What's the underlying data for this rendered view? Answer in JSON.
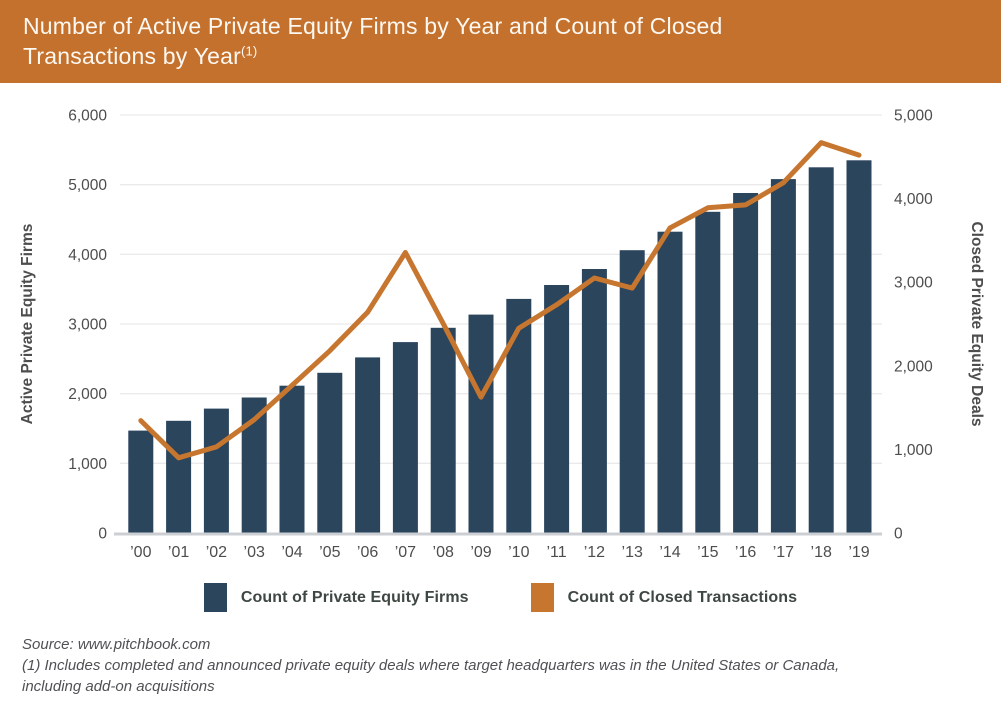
{
  "header": {
    "title_line1": "Number of Active Private Equity Firms by Year and Count of Closed",
    "title_line2": "Transactions by Year",
    "title_superscript": "(1)",
    "background_color": "#C5712E",
    "text_color": "#FDF8F1"
  },
  "chart_data": {
    "type": "combo",
    "categories": [
      "’00",
      "’01",
      "’02",
      "’03",
      "’04",
      "’05",
      "’06",
      "’07",
      "’08",
      "’09",
      "’10",
      "’11",
      "’12",
      "’13",
      "’14",
      "’15",
      "’16",
      "’17",
      "’18",
      "’19"
    ],
    "series": [
      {
        "name": "Count of Private Equity Firms",
        "type": "bar",
        "axis": "left",
        "color": "#2A455C",
        "values": [
          1470,
          1610,
          1785,
          1945,
          2115,
          2300,
          2520,
          2740,
          2945,
          3135,
          3360,
          3560,
          3790,
          4060,
          4325,
          4610,
          4880,
          5080,
          5250,
          5350
        ]
      },
      {
        "name": "Count of Closed Transactions",
        "type": "line",
        "axis": "right",
        "color": "#C7762F",
        "values": [
          1345,
          900,
          1030,
          1355,
          1765,
          2180,
          2640,
          3355,
          2505,
          1625,
          2450,
          2730,
          3050,
          2930,
          3650,
          3890,
          3925,
          4190,
          4670,
          4520
        ]
      }
    ],
    "left_axis": {
      "label": "Active Private Equity Firms",
      "min": 0,
      "max": 6000,
      "tick_step": 1000,
      "ticks": [
        "0",
        "1,000",
        "2,000",
        "3,000",
        "4,000",
        "5,000",
        "6,000"
      ]
    },
    "right_axis": {
      "label": "Closed Private Equity Deals",
      "min": 0,
      "max": 5000,
      "tick_step": 1000,
      "ticks": [
        "0",
        "1,000",
        "2,000",
        "3,000",
        "4,000",
        "5,000"
      ]
    },
    "grid": true,
    "legend_position": "bottom",
    "gridline_color": "#EAEAEC",
    "baseline_color": "#CBCFD3",
    "tick_label_color": "#4D4D4D"
  },
  "footer": {
    "source_line": "Source: www.pitchbook.com",
    "note_line1": "(1) Includes completed and announced private equity deals where target headquarters was in the United States or Canada,",
    "note_line2": "including add-on acquisitions"
  }
}
